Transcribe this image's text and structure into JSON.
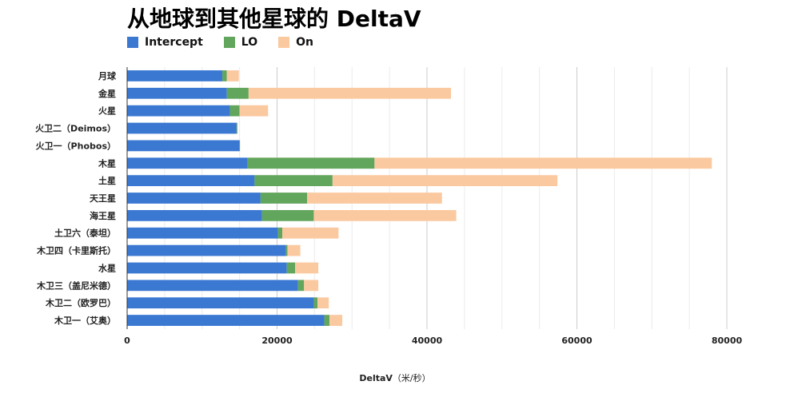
{
  "title": "从地球到其他星球的 DeltaV",
  "colors": {
    "Intercept": "#3a78d2",
    "LO": "#62a55c",
    "On": "#fbc9a0"
  },
  "chart_data": {
    "type": "bar",
    "orientation": "horizontal",
    "stacked": true,
    "xlabel_bold": "DeltaV",
    "xlabel_unit": "（米/秒）",
    "xlim": [
      0,
      80000
    ],
    "xticks": [
      0,
      20000,
      40000,
      60000,
      80000
    ],
    "grid": true,
    "legend_position": "top-left",
    "categories": [
      "月球",
      "金星",
      "火星",
      "火卫二（Deimos）",
      "火卫一（Phobos）",
      "木星",
      "土星",
      "天王星",
      "海王星",
      "土卫六（泰坦）",
      "木卫四（卡里斯托）",
      "水星",
      "木卫三（盖尼米德）",
      "木卫二（欧罗巴）",
      "木卫一（艾奥）"
    ],
    "series": [
      {
        "name": "Intercept",
        "values": [
          12700,
          13300,
          13700,
          14600,
          15000,
          16000,
          17000,
          17800,
          18000,
          20100,
          21200,
          21300,
          22800,
          24900,
          26300
        ]
      },
      {
        "name": "LO",
        "values": [
          600,
          2900,
          1300,
          100,
          50,
          17000,
          10400,
          6200,
          6900,
          600,
          200,
          1100,
          800,
          500,
          700
        ]
      },
      {
        "name": "On",
        "values": [
          1600,
          27000,
          3800,
          0,
          0,
          45000,
          30000,
          18000,
          19000,
          7500,
          1700,
          3100,
          1900,
          1500,
          1700
        ]
      }
    ]
  }
}
